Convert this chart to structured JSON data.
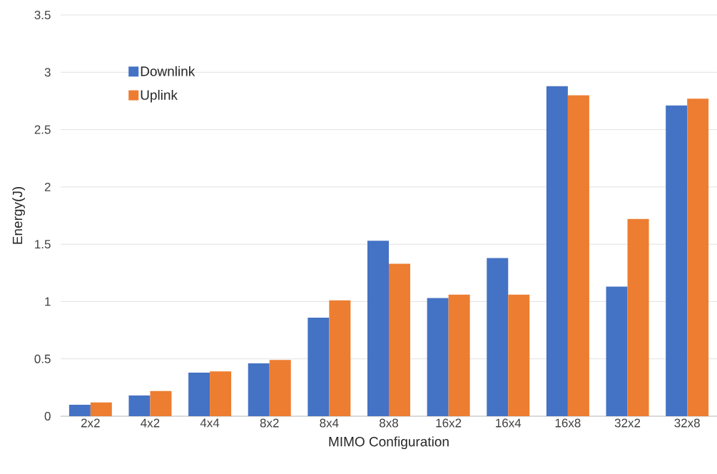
{
  "chart_data": {
    "type": "bar",
    "xlabel": "MIMO Configuration",
    "ylabel": "Energy(J)",
    "categories": [
      "2x2",
      "4x2",
      "4x4",
      "8x2",
      "8x4",
      "8x8",
      "16x2",
      "16x4",
      "16x8",
      "32x2",
      "32x8"
    ],
    "series": [
      {
        "name": "Downlink",
        "color": "#4472c4",
        "values": [
          0.1,
          0.18,
          0.38,
          0.46,
          0.86,
          1.53,
          1.03,
          1.38,
          2.88,
          1.13,
          2.71
        ]
      },
      {
        "name": "Uplink",
        "color": "#ed7d31",
        "values": [
          0.12,
          0.22,
          0.39,
          0.49,
          1.01,
          1.33,
          1.06,
          1.06,
          2.8,
          1.72,
          2.77
        ]
      }
    ],
    "ylim": [
      0,
      3.5
    ],
    "yticks": [
      0,
      0.5,
      1,
      1.5,
      2,
      2.5,
      3,
      3.5
    ],
    "grid": "y",
    "legend": "top left"
  }
}
